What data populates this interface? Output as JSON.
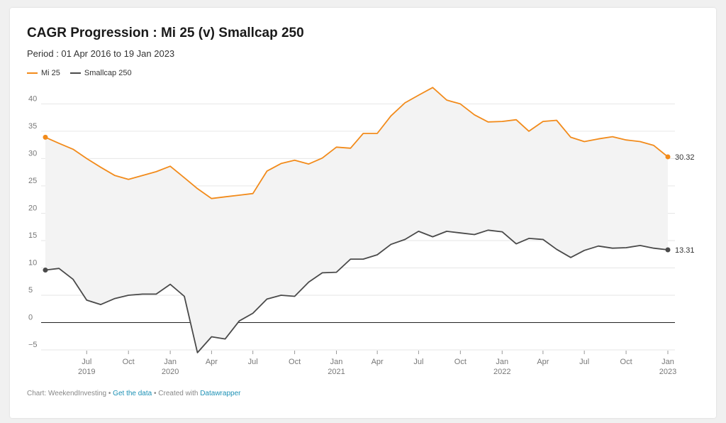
{
  "chart_data": {
    "type": "line",
    "title": "CAGR Progression : Mi 25 (v) Smallcap 250",
    "subtitle": "Period : 01 Apr 2016 to 19 Jan 2023",
    "ylim": [
      -5,
      42
    ],
    "yticks": [
      40,
      35,
      30,
      25,
      20,
      15,
      10,
      5,
      0,
      -5
    ],
    "ytick_labels": [
      "40",
      "35",
      "30",
      "25",
      "20",
      "15",
      "10",
      "5",
      "0",
      "−5"
    ],
    "grid": true,
    "legend_position": "top-left",
    "xticks": [
      {
        "date": "2019-07-01",
        "label": "Jul",
        "year": "2019"
      },
      {
        "date": "2019-10-01",
        "label": "Oct",
        "year": ""
      },
      {
        "date": "2020-01-01",
        "label": "Jan",
        "year": "2020"
      },
      {
        "date": "2020-04-01",
        "label": "Apr",
        "year": ""
      },
      {
        "date": "2020-07-01",
        "label": "Jul",
        "year": ""
      },
      {
        "date": "2020-10-01",
        "label": "Oct",
        "year": ""
      },
      {
        "date": "2021-01-01",
        "label": "Jan",
        "year": "2021"
      },
      {
        "date": "2021-04-01",
        "label": "Apr",
        "year": ""
      },
      {
        "date": "2021-07-01",
        "label": "Jul",
        "year": ""
      },
      {
        "date": "2021-10-01",
        "label": "Oct",
        "year": ""
      },
      {
        "date": "2022-01-01",
        "label": "Jan",
        "year": "2022"
      },
      {
        "date": "2022-04-01",
        "label": "Apr",
        "year": ""
      },
      {
        "date": "2022-07-01",
        "label": "Jul",
        "year": ""
      },
      {
        "date": "2022-10-01",
        "label": "Oct",
        "year": ""
      },
      {
        "date": "2023-01-01",
        "label": "Jan",
        "year": "2023"
      }
    ],
    "x": [
      "2019-04-01",
      "2019-05-01",
      "2019-06-01",
      "2019-07-01",
      "2019-08-01",
      "2019-09-01",
      "2019-10-01",
      "2019-11-01",
      "2019-12-01",
      "2020-01-01",
      "2020-02-01",
      "2020-03-01",
      "2020-04-01",
      "2020-05-01",
      "2020-06-01",
      "2020-07-01",
      "2020-08-01",
      "2020-09-01",
      "2020-10-01",
      "2020-11-01",
      "2020-12-01",
      "2021-01-01",
      "2021-02-01",
      "2021-03-01",
      "2021-04-01",
      "2021-05-01",
      "2021-06-01",
      "2021-07-01",
      "2021-08-01",
      "2021-09-01",
      "2021-10-01",
      "2021-11-01",
      "2021-12-01",
      "2022-01-01",
      "2022-02-01",
      "2022-03-01",
      "2022-04-01",
      "2022-05-01",
      "2022-06-01",
      "2022-07-01",
      "2022-08-01",
      "2022-09-01",
      "2022-10-01",
      "2022-11-01",
      "2022-12-01",
      "2023-01-01"
    ],
    "series": [
      {
        "name": "Mi 25",
        "color": "#f28b1b",
        "end_label": "30.32",
        "values": [
          33.9,
          32.8,
          31.7,
          30.0,
          28.4,
          26.9,
          26.2,
          26.9,
          27.6,
          28.6,
          26.5,
          24.5,
          22.7,
          23.0,
          23.3,
          23.6,
          27.7,
          29.1,
          29.7,
          29.0,
          30.1,
          32.1,
          31.9,
          34.6,
          34.6,
          37.8,
          40.2,
          41.6,
          43.0,
          40.7,
          40.0,
          38.0,
          36.7,
          36.8,
          37.1,
          35.0,
          36.8,
          37.0,
          33.9,
          33.1,
          33.6,
          34.0,
          33.4,
          33.1,
          32.4,
          30.32
        ]
      },
      {
        "name": "Smallcap 250",
        "color": "#4a4a4a",
        "end_label": "13.31",
        "values": [
          9.6,
          9.9,
          7.9,
          4.1,
          3.3,
          4.4,
          5.0,
          5.2,
          5.2,
          7.0,
          4.8,
          -5.5,
          -2.6,
          -3.0,
          0.3,
          1.7,
          4.3,
          5.0,
          4.8,
          7.4,
          9.1,
          9.2,
          11.6,
          11.6,
          12.4,
          14.3,
          15.2,
          16.7,
          15.7,
          16.7,
          16.4,
          16.1,
          16.9,
          16.6,
          14.4,
          15.4,
          15.2,
          13.4,
          11.9,
          13.2,
          14.0,
          13.6,
          13.7,
          14.1,
          13.6,
          13.31
        ]
      }
    ]
  },
  "footer": {
    "prefix": "Chart: WeekendInvesting • ",
    "link1": "Get the data",
    "middle": " • Created with ",
    "link2": "Datawrapper"
  }
}
